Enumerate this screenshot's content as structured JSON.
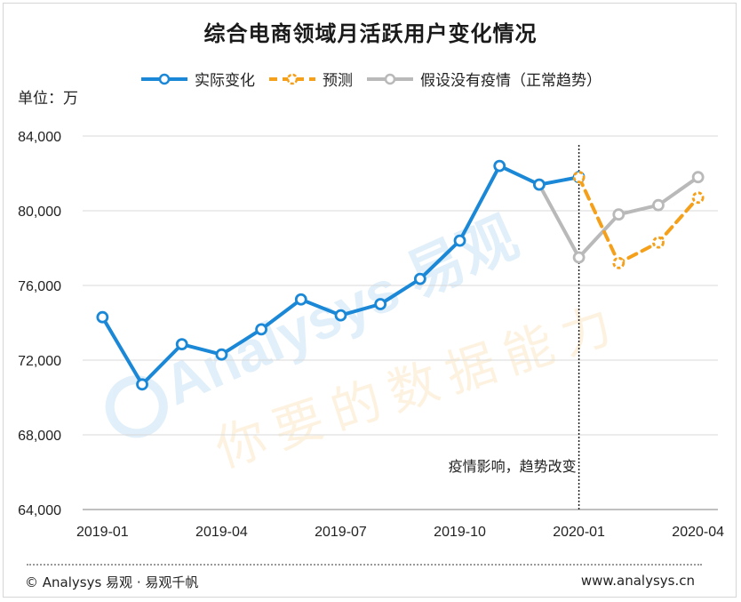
{
  "title": "综合电商领域月活跃用户变化情况",
  "unit_label": "单位：万",
  "legend": [
    {
      "label": "实际变化",
      "color": "#1a88d6",
      "style": "solid"
    },
    {
      "label": "预测",
      "color": "#f5a01a",
      "style": "dashed"
    },
    {
      "label": "假设没有疫情（正常趋势）",
      "color": "#b9b9b9",
      "style": "solid"
    }
  ],
  "annotation": "疫情影响，趋势改变",
  "footer": {
    "left": "© Analysys 易观 · 易观千帆",
    "right": "www.analysys.cn"
  },
  "watermark": {
    "brand": "Analysys 易观",
    "slogan": "你要的数据能力"
  },
  "chart_data": {
    "type": "line",
    "x": [
      "2019-01",
      "2019-02",
      "2019-03",
      "2019-04",
      "2019-05",
      "2019-06",
      "2019-07",
      "2019-08",
      "2019-09",
      "2019-10",
      "2019-11",
      "2019-12",
      "2020-01",
      "2020-02",
      "2020-03",
      "2020-04"
    ],
    "x_tick_labels": [
      "2019-01",
      "2019-04",
      "2019-07",
      "2019-10",
      "2020-01",
      "2020-04"
    ],
    "y_ticks": [
      "64,000",
      "68,000",
      "72,000",
      "76,000",
      "80,000",
      "84,000"
    ],
    "ylim": [
      64000,
      84000
    ],
    "grid": true,
    "legend_position": "top",
    "series": [
      {
        "name": "实际变化",
        "x": [
          "2019-01",
          "2019-02",
          "2019-03",
          "2019-04",
          "2019-05",
          "2019-06",
          "2019-07",
          "2019-08",
          "2019-09",
          "2019-10",
          "2019-11",
          "2019-12",
          "2020-01"
        ],
        "values": [
          74300,
          70700,
          72850,
          72300,
          73650,
          75250,
          74400,
          75000,
          76350,
          78400,
          82400,
          81400,
          81800
        ]
      },
      {
        "name": "预测",
        "x": [
          "2020-01",
          "2020-02",
          "2020-03",
          "2020-04"
        ],
        "values": [
          81800,
          77200,
          78300,
          80700
        ]
      },
      {
        "name": "假设没有疫情（正常趋势）",
        "x": [
          "2019-12",
          "2020-01",
          "2020-02",
          "2020-03",
          "2020-04"
        ],
        "values": [
          81400,
          77500,
          79800,
          80300,
          81800
        ]
      }
    ],
    "vline_at": "2020-01"
  }
}
